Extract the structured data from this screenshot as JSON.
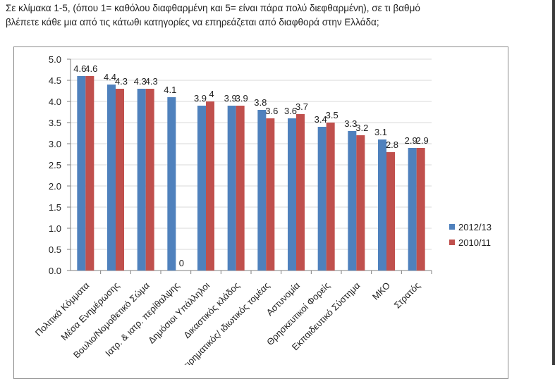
{
  "question": {
    "line1": "Σε κλίμακα 1-5, (όπου 1= καθόλου διαφθαρμένη και 5= είναι πάρα πολύ διεφθαρμένη), σε τι βαθμό",
    "line2": "βλέπετε κάθε μια από τις κάτωθι κατηγορίες να επηρεάζεται από διαφθορά στην Ελλάδα;"
  },
  "colors": {
    "series1": "#4f81bd",
    "series2": "#c0504d",
    "grid": "#d9d9d9",
    "axis": "#7f7f7f"
  },
  "chart_data": {
    "type": "bar",
    "categories": [
      "Πολιτικά Κόμματα",
      "Μέσα Ενημέρωσης",
      "Βουλιο/Νομοθετικό Σώμα",
      "Ιατρ. & ιατρ. περίθαλψης",
      "Δημόσιοι Υπάλληλοι",
      "Δικαστικός κλάδος",
      "Επιχειρηματικός/ ιδιωτικός τομέας",
      "Αστυνομία",
      "Θρησκευτικοί Φορείς",
      "Εκπαιδευτικό Σύστημα",
      "ΜΚΟ",
      "Στρατός"
    ],
    "series": [
      {
        "name": "2012/13",
        "values": [
          4.6,
          4.4,
          4.3,
          4.1,
          3.9,
          3.9,
          3.8,
          3.6,
          3.4,
          3.3,
          3.1,
          2.9
        ],
        "labels": [
          "4.6",
          "4.4",
          "4.3",
          "4.1",
          "3.9",
          "3.9",
          "3.8",
          "3.6",
          "3.4",
          "3.3",
          "3.1",
          "2.9"
        ]
      },
      {
        "name": "2010/11",
        "values": [
          4.6,
          4.3,
          4.3,
          0,
          4.0,
          3.9,
          3.6,
          3.7,
          3.5,
          3.2,
          2.8,
          2.9
        ],
        "labels": [
          "4.6",
          "4.3",
          "4.3",
          "0",
          "4",
          "3.9",
          "3.6",
          "3.7",
          "3.5",
          "3.2",
          "2.8",
          "2.9"
        ]
      }
    ],
    "ylim": [
      0,
      5
    ],
    "yticks": [
      "0.0",
      "0.5",
      "1.0",
      "1.5",
      "2.0",
      "2.5",
      "3.0",
      "3.5",
      "4.0",
      "4.5",
      "5.0"
    ],
    "grid": true,
    "legend": "right"
  }
}
